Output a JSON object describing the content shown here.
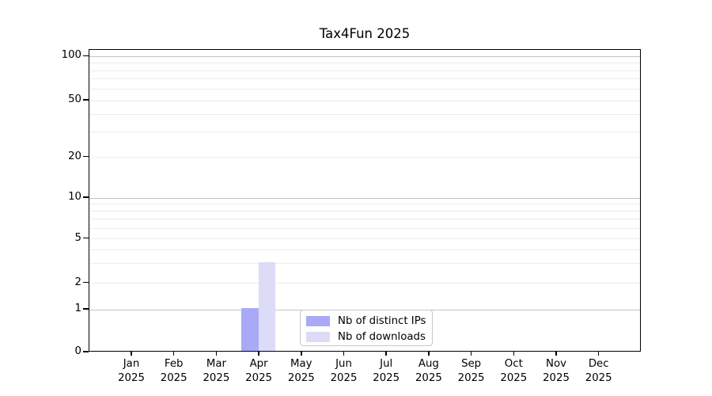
{
  "title": "Tax4Fun 2025",
  "chart_data": {
    "type": "bar",
    "title": "Tax4Fun 2025",
    "categories": [
      "Jan 2025",
      "Feb 2025",
      "Mar 2025",
      "Apr 2025",
      "May 2025",
      "Jun 2025",
      "Jul 2025",
      "Aug 2025",
      "Sep 2025",
      "Oct 2025",
      "Nov 2025",
      "Dec 2025"
    ],
    "series": [
      {
        "name": "Nb of distinct IPs",
        "color": "#a9a9f7",
        "values": [
          0,
          0,
          0,
          1,
          0,
          0,
          0,
          0,
          0,
          0,
          0,
          0
        ]
      },
      {
        "name": "Nb of downloads",
        "color": "#dcdcf8",
        "values": [
          0,
          0,
          0,
          3,
          0,
          0,
          0,
          0,
          0,
          0,
          0,
          0
        ]
      }
    ],
    "yscale": "log-like with zero baseline",
    "ylim": [
      0,
      110
    ],
    "yticks": [
      0,
      1,
      2,
      5,
      10,
      20,
      50,
      100
    ],
    "grid": "horizontal",
    "legend_position": "bottom-center"
  },
  "y_axis": {
    "tick_values": [
      100,
      50,
      20,
      10,
      5,
      2,
      1,
      0
    ],
    "tick_labels": [
      "100",
      "50",
      "20",
      "10",
      "5",
      "2",
      "1",
      "0"
    ],
    "gridlines_decade": [
      1,
      10,
      100
    ],
    "gridlines_minor": [
      2,
      3,
      4,
      5,
      6,
      7,
      8,
      9,
      20,
      30,
      40,
      50,
      60,
      70,
      80,
      90
    ]
  },
  "x_axis": {
    "months": [
      "Jan",
      "Feb",
      "Mar",
      "Apr",
      "May",
      "Jun",
      "Jul",
      "Aug",
      "Sep",
      "Oct",
      "Nov",
      "Dec"
    ],
    "year": "2025"
  },
  "legend": {
    "items": [
      {
        "label": "Nb of distinct IPs",
        "color": "#a9a9f7"
      },
      {
        "label": "Nb of downloads",
        "color": "#dcdcf8"
      }
    ]
  },
  "colors": {
    "distinct_ips_bar": "#a9a9f7",
    "downloads_bar": "#dcdcf8",
    "axis": "#000000"
  }
}
